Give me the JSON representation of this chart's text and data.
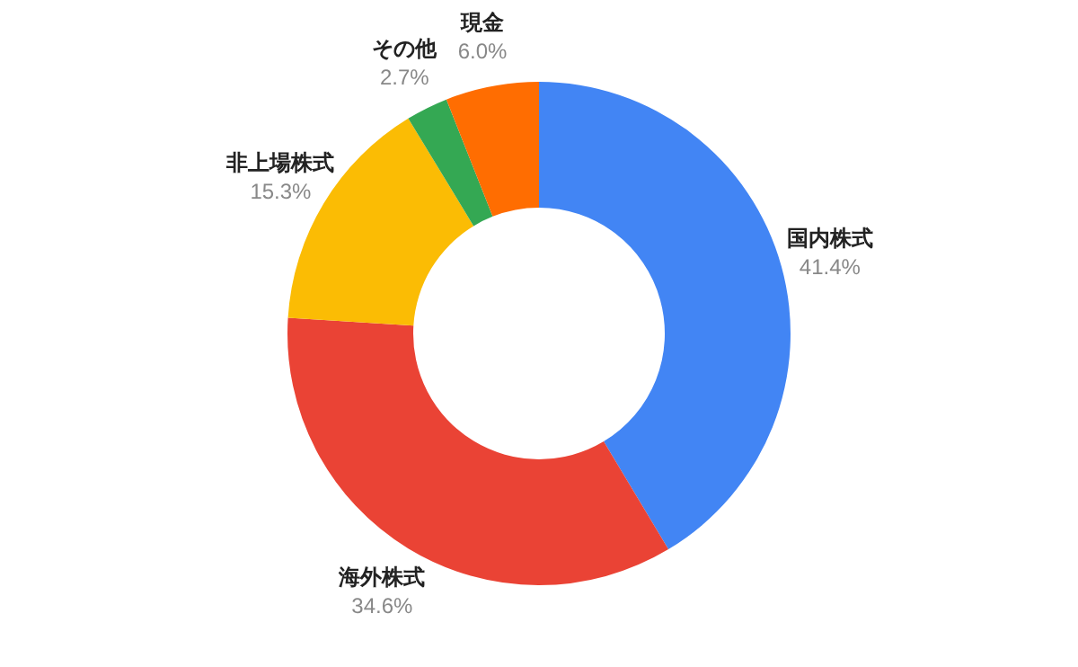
{
  "chart_data": {
    "type": "donut",
    "categories": [
      "国内株式",
      "海外株式",
      "非上場株式",
      "その他",
      "現金"
    ],
    "values": [
      41.4,
      34.6,
      15.3,
      2.7,
      6.0
    ],
    "colors": [
      "#4285f4",
      "#ea4335",
      "#fbbc04",
      "#34a853",
      "#ff6d01"
    ],
    "value_labels": [
      "41.4%",
      "34.6%",
      "15.3%",
      "2.7%",
      "6.0%"
    ]
  }
}
